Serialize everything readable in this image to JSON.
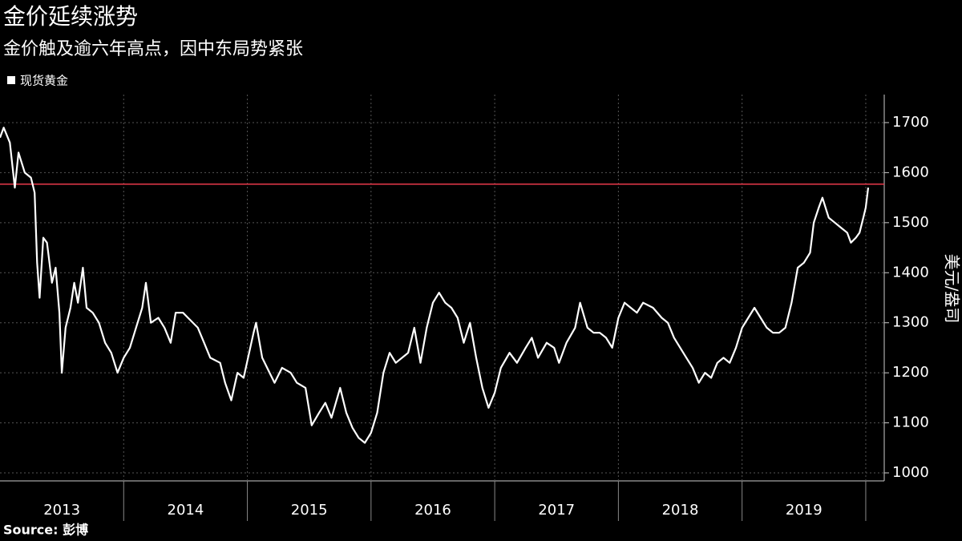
{
  "chart_data": {
    "type": "line",
    "title": "金价延续涨势",
    "subtitle": "金价触及逾六年高点，因中东局势紧张",
    "y_label": "美元/盎司",
    "source": "Source: 彭博",
    "series": [
      {
        "name": "现货黄金",
        "color": "#ffffff",
        "x": [
          2013.0,
          2013.03,
          2013.08,
          2013.12,
          2013.15,
          2013.2,
          2013.25,
          2013.28,
          2013.3,
          2013.32,
          2013.35,
          2013.38,
          2013.42,
          2013.45,
          2013.48,
          2013.5,
          2013.53,
          2013.57,
          2013.6,
          2013.63,
          2013.67,
          2013.7,
          2013.75,
          2013.8,
          2013.85,
          2013.9,
          2013.95,
          2014.0,
          2014.05,
          2014.1,
          2014.15,
          2014.18,
          2014.22,
          2014.28,
          2014.33,
          2014.38,
          2014.42,
          2014.48,
          2014.52,
          2014.6,
          2014.65,
          2014.7,
          2014.78,
          2014.82,
          2014.87,
          2014.92,
          2014.97,
          2015.05,
          2015.07,
          2015.12,
          2015.18,
          2015.22,
          2015.28,
          2015.35,
          2015.4,
          2015.47,
          2015.52,
          2015.58,
          2015.63,
          2015.68,
          2015.75,
          2015.8,
          2015.85,
          2015.9,
          2015.95,
          2016.0,
          2016.05,
          2016.1,
          2016.15,
          2016.2,
          2016.3,
          2016.35,
          2016.4,
          2016.45,
          2016.5,
          2016.55,
          2016.6,
          2016.65,
          2016.7,
          2016.75,
          2016.8,
          2016.85,
          2016.9,
          2016.95,
          2017.0,
          2017.05,
          2017.12,
          2017.18,
          2017.25,
          2017.3,
          2017.35,
          2017.42,
          2017.48,
          2017.52,
          2017.58,
          2017.65,
          2017.69,
          2017.75,
          2017.8,
          2017.85,
          2017.9,
          2017.95,
          2018.0,
          2018.05,
          2018.1,
          2018.15,
          2018.2,
          2018.28,
          2018.35,
          2018.4,
          2018.45,
          2018.5,
          2018.55,
          2018.6,
          2018.65,
          2018.7,
          2018.75,
          2018.8,
          2018.85,
          2018.9,
          2018.95,
          2019.0,
          2019.05,
          2019.1,
          2019.15,
          2019.2,
          2019.25,
          2019.3,
          2019.35,
          2019.4,
          2019.45,
          2019.5,
          2019.55,
          2019.58,
          2019.62,
          2019.65,
          2019.7,
          2019.75,
          2019.8,
          2019.85,
          2019.88,
          2019.92,
          2019.95,
          2019.98,
          2020.0,
          2020.02
        ],
        "values": [
          1670,
          1690,
          1660,
          1570,
          1640,
          1600,
          1590,
          1560,
          1420,
          1350,
          1470,
          1460,
          1380,
          1410,
          1320,
          1200,
          1290,
          1330,
          1380,
          1340,
          1410,
          1330,
          1320,
          1300,
          1260,
          1240,
          1200,
          1230,
          1250,
          1290,
          1330,
          1380,
          1300,
          1310,
          1290,
          1260,
          1320,
          1320,
          1310,
          1290,
          1260,
          1230,
          1220,
          1180,
          1145,
          1200,
          1190,
          1280,
          1300,
          1230,
          1200,
          1180,
          1210,
          1200,
          1180,
          1170,
          1095,
          1120,
          1140,
          1110,
          1170,
          1120,
          1090,
          1070,
          1060,
          1080,
          1120,
          1200,
          1240,
          1220,
          1240,
          1290,
          1220,
          1290,
          1340,
          1360,
          1340,
          1330,
          1310,
          1260,
          1300,
          1230,
          1170,
          1130,
          1160,
          1210,
          1240,
          1220,
          1250,
          1270,
          1230,
          1260,
          1250,
          1220,
          1260,
          1290,
          1340,
          1290,
          1280,
          1280,
          1270,
          1250,
          1310,
          1340,
          1330,
          1320,
          1340,
          1330,
          1310,
          1300,
          1270,
          1250,
          1230,
          1210,
          1180,
          1200,
          1190,
          1220,
          1230,
          1220,
          1250,
          1290,
          1310,
          1330,
          1310,
          1290,
          1280,
          1280,
          1290,
          1340,
          1410,
          1420,
          1440,
          1500,
          1530,
          1550,
          1510,
          1500,
          1490,
          1480,
          1460,
          1470,
          1480,
          1510,
          1530,
          1570
        ]
      }
    ],
    "reference_line": {
      "value": 1577,
      "color": "#e8394a"
    },
    "xlim": [
      2013.0,
      2020.13
    ],
    "xticks": [
      {
        "value": 2013.5,
        "label": "2013"
      },
      {
        "value": 2014.5,
        "label": "2014"
      },
      {
        "value": 2015.5,
        "label": "2015"
      },
      {
        "value": 2016.5,
        "label": "2016"
      },
      {
        "value": 2017.5,
        "label": "2017"
      },
      {
        "value": 2018.5,
        "label": "2018"
      },
      {
        "value": 2019.5,
        "label": "2019"
      }
    ],
    "ylim": [
      984,
      1756
    ],
    "yticks": [
      1000,
      1100,
      1200,
      1300,
      1400,
      1500,
      1600,
      1700
    ],
    "grid": true
  }
}
